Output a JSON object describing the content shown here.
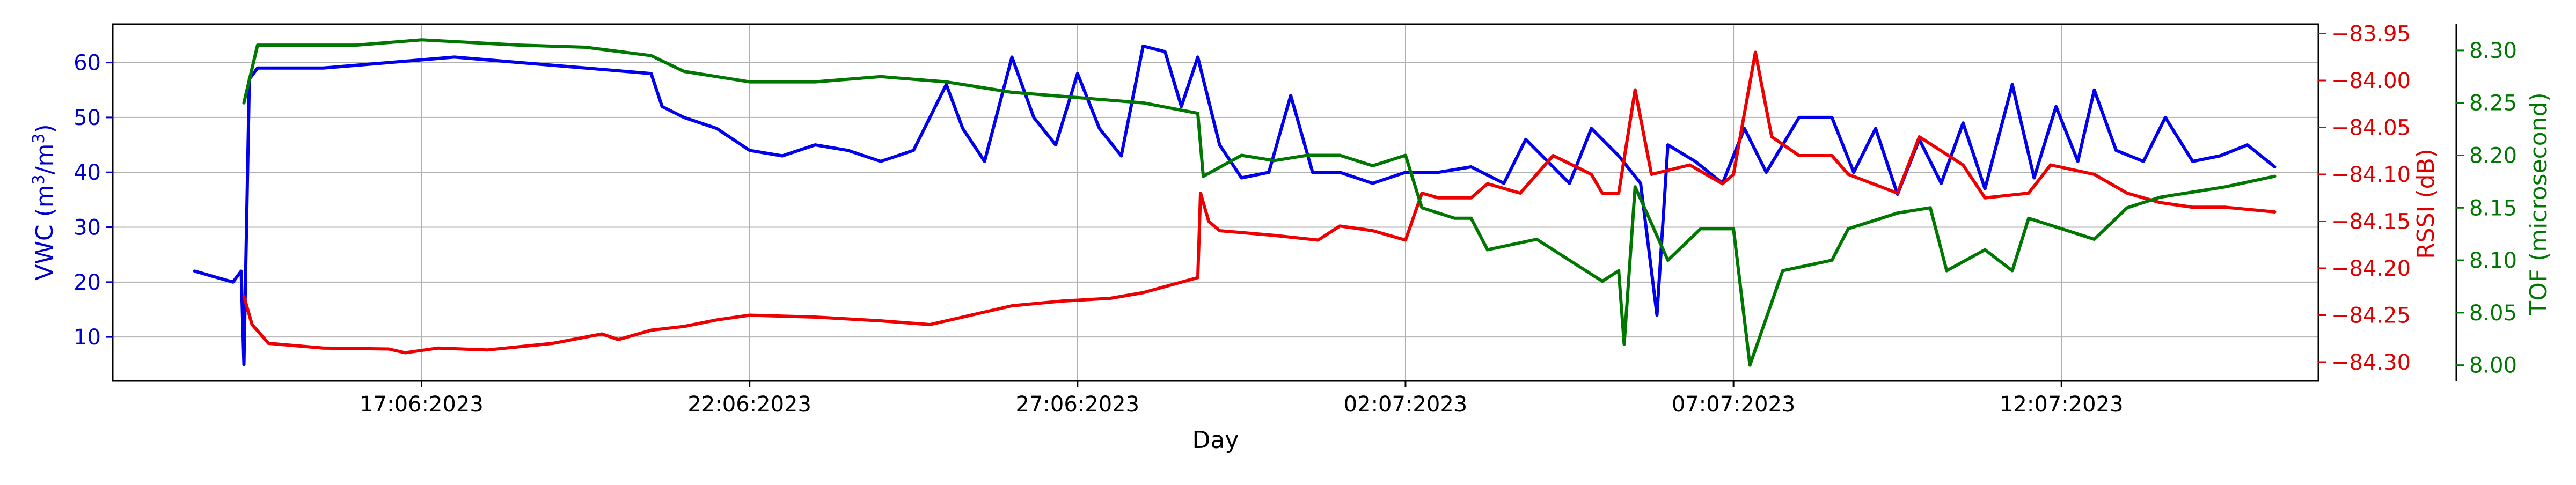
{
  "chart_data": {
    "type": "line",
    "xlabel": "Day",
    "x_tick_labels": [
      "17:06:2023",
      "22:06:2023",
      "27:06:2023",
      "02:07:2023",
      "07:07:2023",
      "12:07:2023"
    ],
    "x_tick_days": [
      "2023-06-17",
      "2023-06-22",
      "2023-06-27",
      "2023-07-02",
      "2023-07-07",
      "2023-07-12"
    ],
    "xlim": [
      "2023-06-12T07:00",
      "2023-07-15T22:00"
    ],
    "grid": true,
    "axes": {
      "left": {
        "label_prefix": "VWC (m",
        "label_mid": "/m",
        "label_suffix": ")",
        "label_sup": "3",
        "color": "#0000cc",
        "ticks": [
          "10",
          "20",
          "30",
          "40",
          "50",
          "60"
        ],
        "ylim": [
          2,
          67
        ]
      },
      "right1": {
        "label": "RSSI (dB)",
        "color": "#dd0000",
        "ticks": [
          "−84.30",
          "−84.25",
          "−84.20",
          "−84.15",
          "−84.10",
          "−84.05",
          "−84.00",
          "−83.95"
        ],
        "ylim": [
          -84.32,
          -83.94
        ]
      },
      "right2": {
        "label": "TOF (microsecond)",
        "color": "#007700",
        "ticks": [
          "8.00",
          "8.05",
          "8.10",
          "8.15",
          "8.20",
          "8.25",
          "8.30"
        ],
        "ylim": [
          7.985,
          8.325
        ]
      }
    },
    "series": [
      {
        "axis": "left",
        "color": "#0000ee",
        "points": [
          [
            "2023-06-13T13:00",
            22
          ],
          [
            "2023-06-13T20:00",
            21
          ],
          [
            "2023-06-14T03:00",
            20
          ],
          [
            "2023-06-14T06:00",
            22
          ],
          [
            "2023-06-14T07:00",
            5
          ],
          [
            "2023-06-14T09:00",
            57
          ],
          [
            "2023-06-14T12:00",
            59
          ],
          [
            "2023-06-15T12:00",
            59
          ],
          [
            "2023-06-16T12:00",
            60
          ],
          [
            "2023-06-17T12:00",
            61
          ],
          [
            "2023-06-18T12:00",
            60
          ],
          [
            "2023-06-19T12:00",
            59
          ],
          [
            "2023-06-20T12:00",
            58
          ],
          [
            "2023-06-20T16:00",
            52
          ],
          [
            "2023-06-21T00:00",
            50
          ],
          [
            "2023-06-21T12:00",
            48
          ],
          [
            "2023-06-22T00:00",
            44
          ],
          [
            "2023-06-22T12:00",
            43
          ],
          [
            "2023-06-23T00:00",
            45
          ],
          [
            "2023-06-23T12:00",
            44
          ],
          [
            "2023-06-24T00:00",
            42
          ],
          [
            "2023-06-24T12:00",
            44
          ],
          [
            "2023-06-25T00:00",
            56
          ],
          [
            "2023-06-25T06:00",
            48
          ],
          [
            "2023-06-25T14:00",
            42
          ],
          [
            "2023-06-26T00:00",
            61
          ],
          [
            "2023-06-26T08:00",
            50
          ],
          [
            "2023-06-26T16:00",
            45
          ],
          [
            "2023-06-27T00:00",
            58
          ],
          [
            "2023-06-27T08:00",
            48
          ],
          [
            "2023-06-27T16:00",
            43
          ],
          [
            "2023-06-28T00:00",
            63
          ],
          [
            "2023-06-28T08:00",
            62
          ],
          [
            "2023-06-28T14:00",
            52
          ],
          [
            "2023-06-28T20:00",
            61
          ],
          [
            "2023-06-29T04:00",
            45
          ],
          [
            "2023-06-29T12:00",
            39
          ],
          [
            "2023-06-29T22:00",
            40
          ],
          [
            "2023-06-30T06:00",
            54
          ],
          [
            "2023-06-30T14:00",
            40
          ],
          [
            "2023-07-01T00:00",
            40
          ],
          [
            "2023-07-01T12:00",
            38
          ],
          [
            "2023-07-02T00:00",
            40
          ],
          [
            "2023-07-02T12:00",
            40
          ],
          [
            "2023-07-03T00:00",
            41
          ],
          [
            "2023-07-03T12:00",
            38
          ],
          [
            "2023-07-03T20:00",
            46
          ],
          [
            "2023-07-04T04:00",
            42
          ],
          [
            "2023-07-04T12:00",
            38
          ],
          [
            "2023-07-04T20:00",
            48
          ],
          [
            "2023-07-05T06:00",
            43
          ],
          [
            "2023-07-05T14:00",
            38
          ],
          [
            "2023-07-05T20:00",
            14
          ],
          [
            "2023-07-06T00:00",
            45
          ],
          [
            "2023-07-06T10:00",
            42
          ],
          [
            "2023-07-06T20:00",
            38
          ],
          [
            "2023-07-07T04:00",
            48
          ],
          [
            "2023-07-07T12:00",
            40
          ],
          [
            "2023-07-08T00:00",
            50
          ],
          [
            "2023-07-08T12:00",
            50
          ],
          [
            "2023-07-08T20:00",
            40
          ],
          [
            "2023-07-09T04:00",
            48
          ],
          [
            "2023-07-09T12:00",
            36
          ],
          [
            "2023-07-09T20:00",
            46
          ],
          [
            "2023-07-10T04:00",
            38
          ],
          [
            "2023-07-10T12:00",
            49
          ],
          [
            "2023-07-10T20:00",
            37
          ],
          [
            "2023-07-11T06:00",
            56
          ],
          [
            "2023-07-11T14:00",
            39
          ],
          [
            "2023-07-11T22:00",
            52
          ],
          [
            "2023-07-12T06:00",
            42
          ],
          [
            "2023-07-12T12:00",
            55
          ],
          [
            "2023-07-12T20:00",
            44
          ],
          [
            "2023-07-13T06:00",
            42
          ],
          [
            "2023-07-13T14:00",
            50
          ],
          [
            "2023-07-14T00:00",
            42
          ],
          [
            "2023-07-14T10:00",
            43
          ],
          [
            "2023-07-14T20:00",
            45
          ],
          [
            "2023-07-15T06:00",
            41
          ]
        ]
      },
      {
        "axis": "right1",
        "color": "#ee0000",
        "points": [
          [
            "2023-06-14T07:00",
            -84.23
          ],
          [
            "2023-06-14T10:00",
            -84.26
          ],
          [
            "2023-06-14T16:00",
            -84.28
          ],
          [
            "2023-06-15T12:00",
            -84.285
          ],
          [
            "2023-06-16T12:00",
            -84.286
          ],
          [
            "2023-06-16T18:00",
            -84.29
          ],
          [
            "2023-06-17T06:00",
            -84.285
          ],
          [
            "2023-06-18T00:00",
            -84.287
          ],
          [
            "2023-06-19T00:00",
            -84.28
          ],
          [
            "2023-06-19T18:00",
            -84.27
          ],
          [
            "2023-06-20T00:00",
            -84.276
          ],
          [
            "2023-06-20T12:00",
            -84.266
          ],
          [
            "2023-06-21T00:00",
            -84.262
          ],
          [
            "2023-06-21T12:00",
            -84.255
          ],
          [
            "2023-06-22T00:00",
            -84.25
          ],
          [
            "2023-06-23T00:00",
            -84.252
          ],
          [
            "2023-06-24T00:00",
            -84.256
          ],
          [
            "2023-06-24T18:00",
            -84.26
          ],
          [
            "2023-06-25T06:00",
            -84.252
          ],
          [
            "2023-06-26T00:00",
            -84.24
          ],
          [
            "2023-06-26T18:00",
            -84.235
          ],
          [
            "2023-06-27T12:00",
            -84.232
          ],
          [
            "2023-06-28T00:00",
            -84.226
          ],
          [
            "2023-06-28T20:00",
            -84.21
          ],
          [
            "2023-06-28T21:00",
            -84.12
          ],
          [
            "2023-06-29T00:00",
            -84.15
          ],
          [
            "2023-06-29T04:00",
            -84.16
          ],
          [
            "2023-06-30T00:00",
            -84.165
          ],
          [
            "2023-06-30T16:00",
            -84.17
          ],
          [
            "2023-07-01T00:00",
            -84.155
          ],
          [
            "2023-07-01T12:00",
            -84.16
          ],
          [
            "2023-07-02T00:00",
            -84.17
          ],
          [
            "2023-07-02T06:00",
            -84.12
          ],
          [
            "2023-07-02T12:00",
            -84.125
          ],
          [
            "2023-07-03T00:00",
            -84.125
          ],
          [
            "2023-07-03T06:00",
            -84.11
          ],
          [
            "2023-07-03T18:00",
            -84.12
          ],
          [
            "2023-07-04T06:00",
            -84.08
          ],
          [
            "2023-07-04T20:00",
            -84.1
          ],
          [
            "2023-07-05T00:00",
            -84.12
          ],
          [
            "2023-07-05T06:00",
            -84.12
          ],
          [
            "2023-07-05T12:00",
            -84.01
          ],
          [
            "2023-07-05T18:00",
            -84.1
          ],
          [
            "2023-07-06T08:00",
            -84.09
          ],
          [
            "2023-07-06T20:00",
            -84.11
          ],
          [
            "2023-07-07T00:00",
            -84.1
          ],
          [
            "2023-07-07T08:00",
            -83.97
          ],
          [
            "2023-07-07T14:00",
            -84.06
          ],
          [
            "2023-07-08T00:00",
            -84.08
          ],
          [
            "2023-07-08T12:00",
            -84.08
          ],
          [
            "2023-07-08T18:00",
            -84.1
          ],
          [
            "2023-07-09T12:00",
            -84.12
          ],
          [
            "2023-07-09T20:00",
            -84.06
          ],
          [
            "2023-07-10T12:00",
            -84.09
          ],
          [
            "2023-07-10T20:00",
            -84.125
          ],
          [
            "2023-07-11T12:00",
            -84.12
          ],
          [
            "2023-07-11T20:00",
            -84.09
          ],
          [
            "2023-07-12T12:00",
            -84.1
          ],
          [
            "2023-07-13T00:00",
            -84.12
          ],
          [
            "2023-07-13T12:00",
            -84.13
          ],
          [
            "2023-07-14T00:00",
            -84.135
          ],
          [
            "2023-07-14T12:00",
            -84.135
          ],
          [
            "2023-07-15T06:00",
            -84.14
          ]
        ]
      },
      {
        "axis": "right2",
        "color": "#007700",
        "points": [
          [
            "2023-06-14T07:00",
            8.25
          ],
          [
            "2023-06-14T12:00",
            8.305
          ],
          [
            "2023-06-16T00:00",
            8.305
          ],
          [
            "2023-06-17T00:00",
            8.31
          ],
          [
            "2023-06-18T12:00",
            8.305
          ],
          [
            "2023-06-19T12:00",
            8.303
          ],
          [
            "2023-06-20T12:00",
            8.295
          ],
          [
            "2023-06-21T00:00",
            8.28
          ],
          [
            "2023-06-22T00:00",
            8.27
          ],
          [
            "2023-06-23T00:00",
            8.27
          ],
          [
            "2023-06-24T00:00",
            8.275
          ],
          [
            "2023-06-25T00:00",
            8.27
          ],
          [
            "2023-06-26T00:00",
            8.26
          ],
          [
            "2023-06-27T00:00",
            8.255
          ],
          [
            "2023-06-28T00:00",
            8.25
          ],
          [
            "2023-06-28T20:00",
            8.24
          ],
          [
            "2023-06-28T22:00",
            8.18
          ],
          [
            "2023-06-29T12:00",
            8.2
          ],
          [
            "2023-06-30T00:00",
            8.195
          ],
          [
            "2023-06-30T12:00",
            8.2
          ],
          [
            "2023-07-01T00:00",
            8.2
          ],
          [
            "2023-07-01T12:00",
            8.19
          ],
          [
            "2023-07-02T00:00",
            8.2
          ],
          [
            "2023-07-02T06:00",
            8.15
          ],
          [
            "2023-07-02T18:00",
            8.14
          ],
          [
            "2023-07-03T00:00",
            8.14
          ],
          [
            "2023-07-03T06:00",
            8.11
          ],
          [
            "2023-07-04T00:00",
            8.12
          ],
          [
            "2023-07-04T12:00",
            8.1
          ],
          [
            "2023-07-05T00:00",
            8.08
          ],
          [
            "2023-07-05T06:00",
            8.09
          ],
          [
            "2023-07-05T08:00",
            8.02
          ],
          [
            "2023-07-05T12:00",
            8.17
          ],
          [
            "2023-07-06T00:00",
            8.1
          ],
          [
            "2023-07-06T12:00",
            8.13
          ],
          [
            "2023-07-07T00:00",
            8.13
          ],
          [
            "2023-07-07T06:00",
            8.0
          ],
          [
            "2023-07-07T18:00",
            8.09
          ],
          [
            "2023-07-08T12:00",
            8.1
          ],
          [
            "2023-07-08T18:00",
            8.13
          ],
          [
            "2023-07-09T12:00",
            8.145
          ],
          [
            "2023-07-10T00:00",
            8.15
          ],
          [
            "2023-07-10T06:00",
            8.09
          ],
          [
            "2023-07-10T20:00",
            8.11
          ],
          [
            "2023-07-11T06:00",
            8.09
          ],
          [
            "2023-07-11T12:00",
            8.14
          ],
          [
            "2023-07-12T00:00",
            8.13
          ],
          [
            "2023-07-12T12:00",
            8.12
          ],
          [
            "2023-07-13T00:00",
            8.15
          ],
          [
            "2023-07-13T12:00",
            8.16
          ],
          [
            "2023-07-14T12:00",
            8.17
          ],
          [
            "2023-07-15T06:00",
            8.18
          ]
        ]
      }
    ]
  }
}
